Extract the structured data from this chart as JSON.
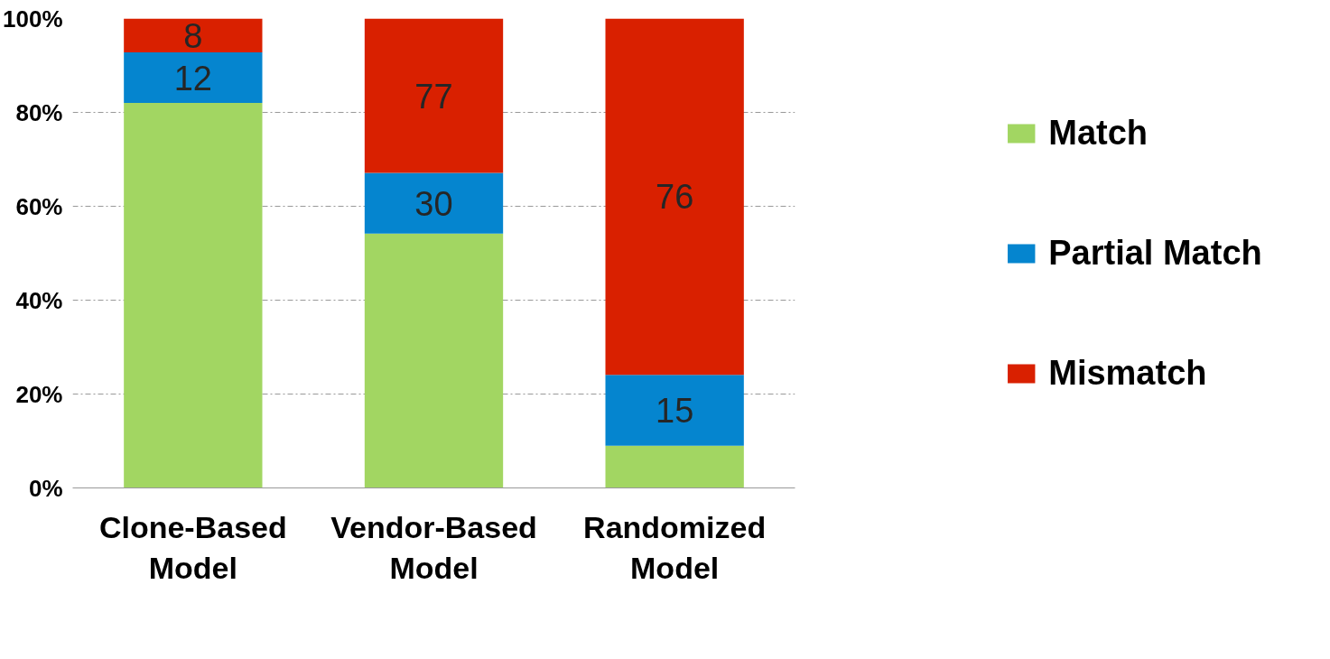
{
  "chart_data": {
    "type": "bar",
    "stacked": true,
    "categories": [
      "Clone-Based\nModel",
      "Vendor-Based\nModel",
      "Randomized\nModel"
    ],
    "series": [
      {
        "name": "Match",
        "color": "#a2d662",
        "values": [
          82,
          54.2,
          9
        ]
      },
      {
        "name": "Partial Match",
        "color": "#0585cf",
        "values": [
          10.8,
          12.9,
          15.1
        ]
      },
      {
        "name": "Mismatch",
        "color": "#d92000",
        "values": [
          7.2,
          32.9,
          75.9
        ]
      }
    ],
    "annotations": [
      "12",
      "8",
      "30",
      "77",
      "15",
      "76"
    ],
    "ylim": [
      0,
      100
    ],
    "yticks": [
      {
        "value": 0,
        "label": "0%"
      },
      {
        "value": 20,
        "label": "20%"
      },
      {
        "value": 40,
        "label": "40%"
      },
      {
        "value": 60,
        "label": "60%"
      },
      {
        "value": 80,
        "label": "80%"
      },
      {
        "value": 100,
        "label": "100%"
      }
    ],
    "grid": "y",
    "legend": "right"
  }
}
